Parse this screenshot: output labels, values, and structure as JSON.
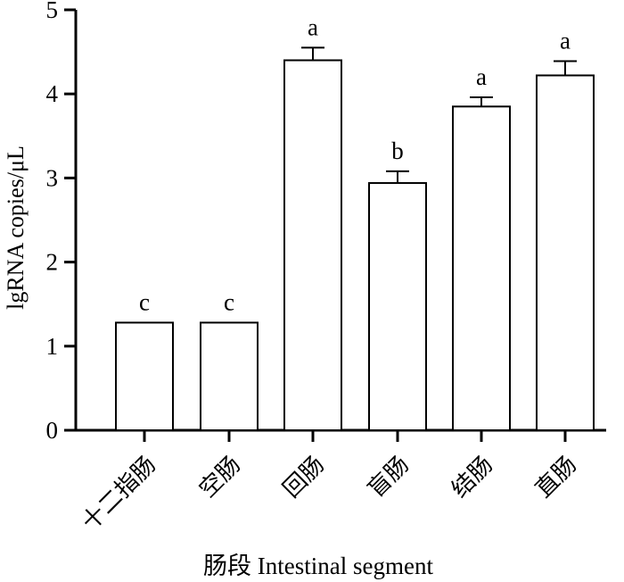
{
  "chart_data": {
    "type": "bar",
    "title": "",
    "xlabel": "肠段 Intestinal segment",
    "ylabel": "lgRNA copies/μL",
    "categories": [
      "十二指肠",
      "空肠",
      "回肠",
      "盲肠",
      "结肠",
      "直肠"
    ],
    "values": [
      1.28,
      1.28,
      4.4,
      2.94,
      3.85,
      4.22
    ],
    "errors": [
      0,
      0,
      0.15,
      0.14,
      0.11,
      0.17
    ],
    "significance_letters": [
      "c",
      "c",
      "a",
      "b",
      "a",
      "a"
    ],
    "ylim": [
      0,
      5
    ],
    "yticks": [
      "0",
      "1",
      "2",
      "3",
      "4",
      "5"
    ],
    "grid": false,
    "legend": "none",
    "bar_fill": "#ffffff",
    "bar_stroke": "#000000",
    "text_color": "#000000"
  }
}
